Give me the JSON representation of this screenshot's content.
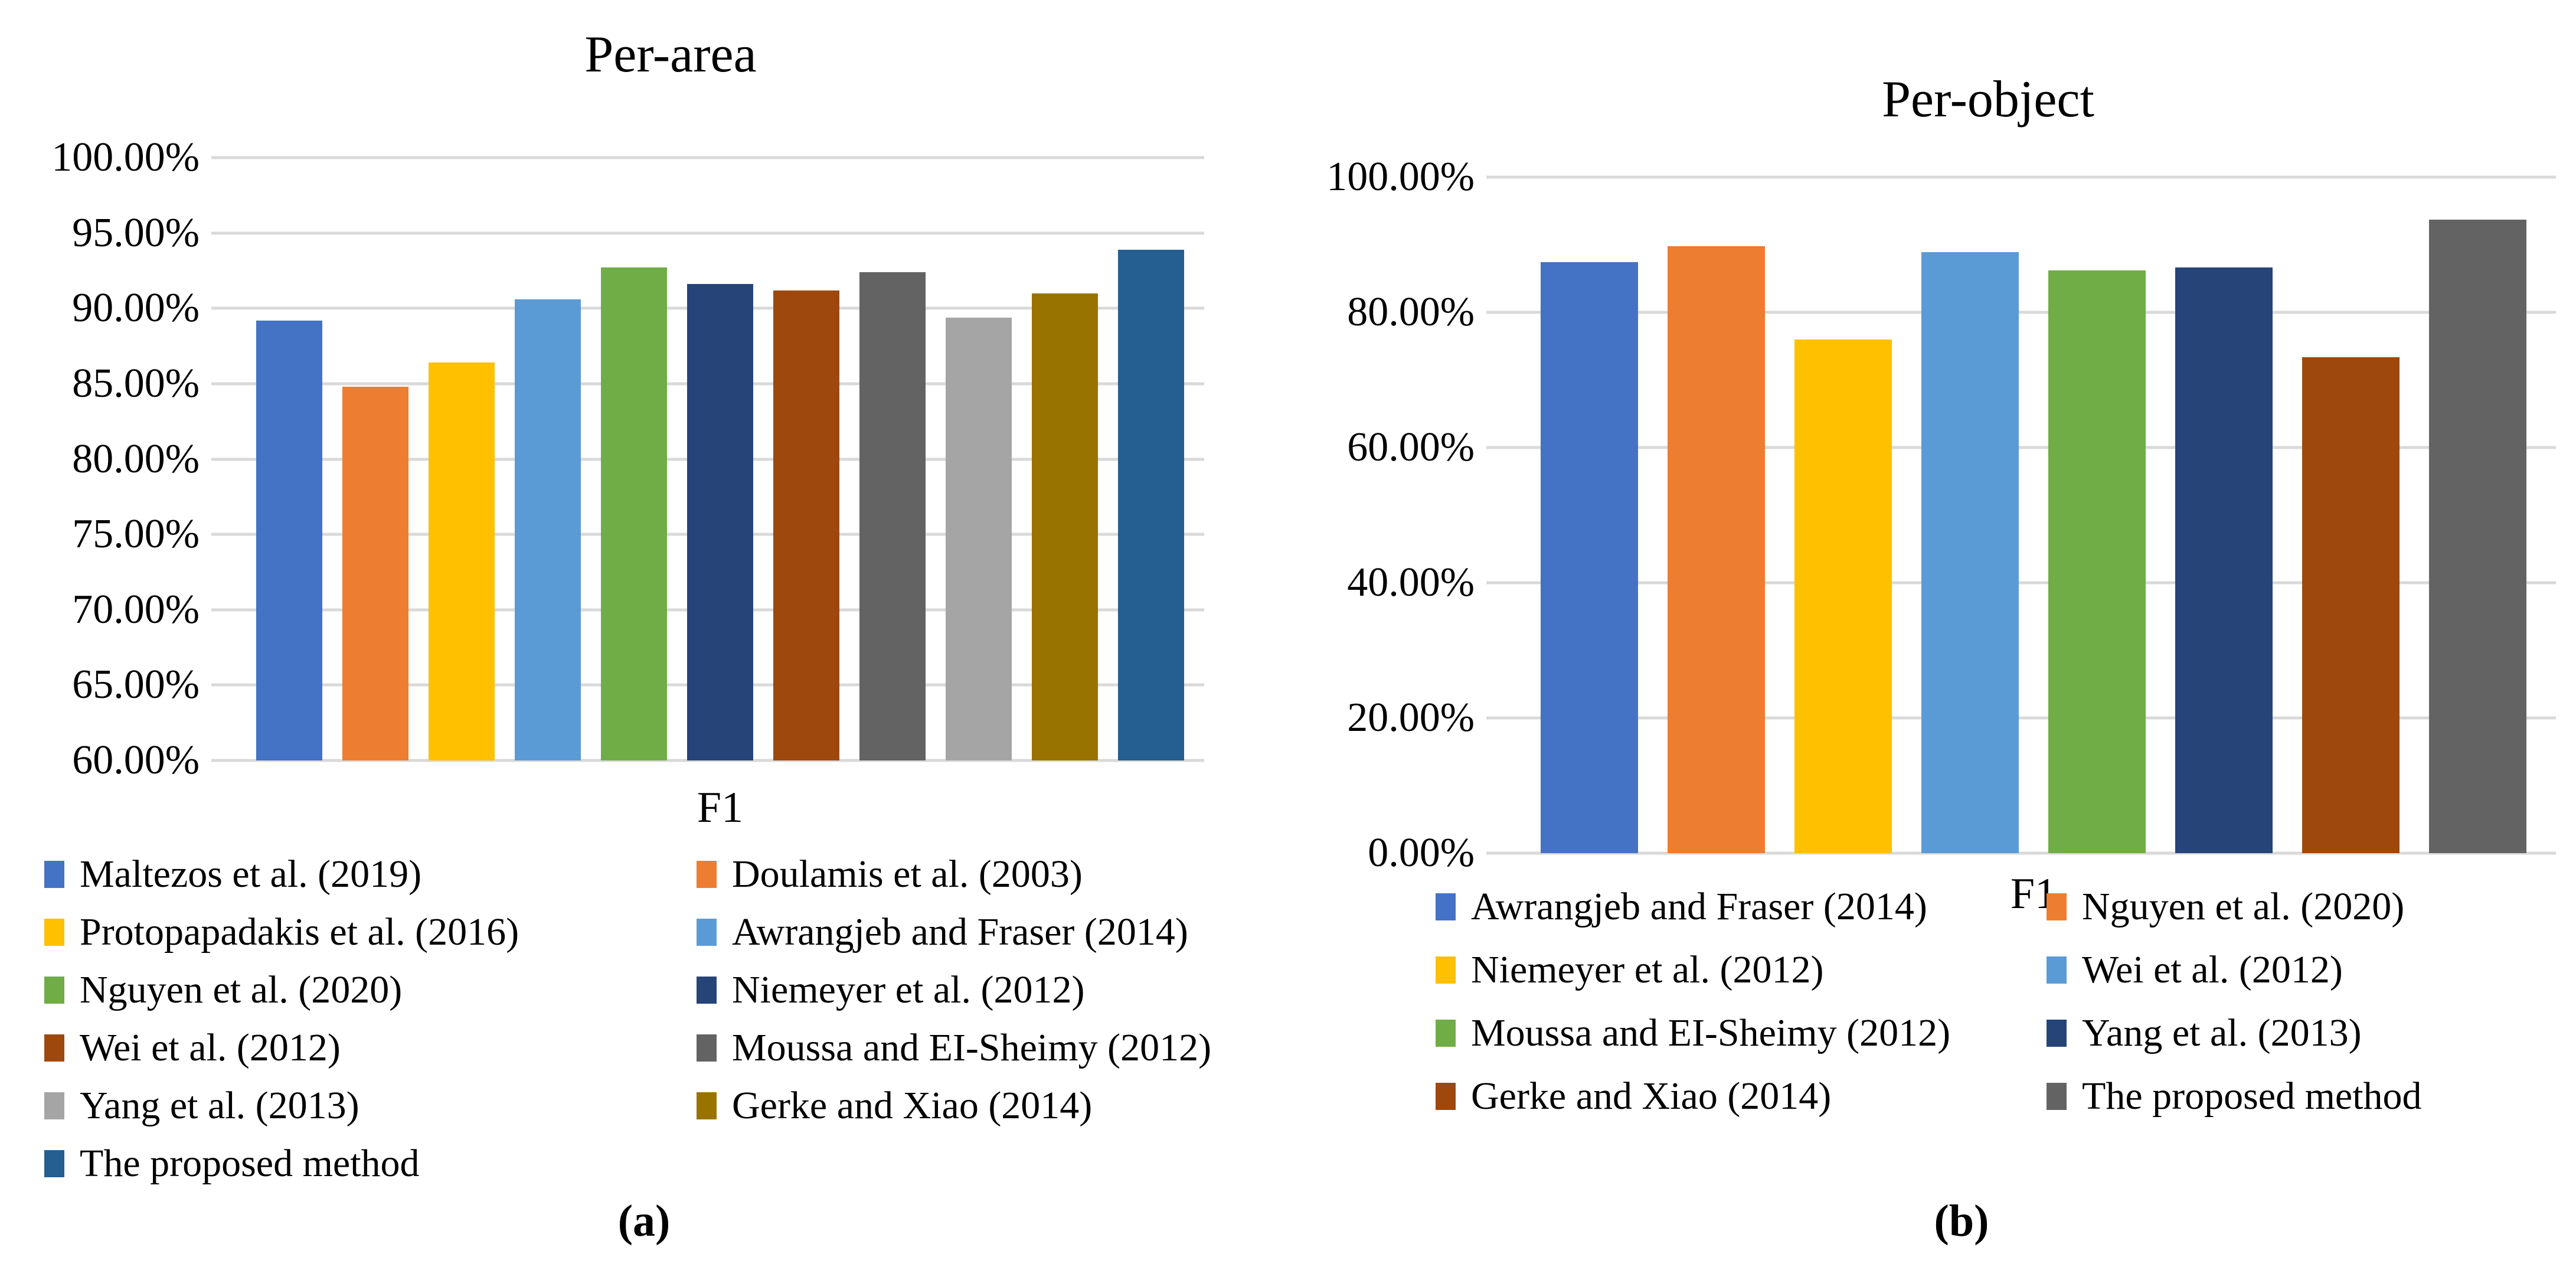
{
  "figure": {
    "panels": [
      {
        "caption": "(a)"
      },
      {
        "caption": "(b)"
      }
    ]
  },
  "chart_data": [
    {
      "type": "bar",
      "title": "Per-area",
      "xlabel": "F1",
      "categories": [
        "F1"
      ],
      "ylim": [
        60,
        100
      ],
      "grid": true,
      "legend_position": "bottom",
      "legend_columns": 2,
      "yticks": [
        {
          "value": 100,
          "label": "100.00%"
        },
        {
          "value": 95,
          "label": "95.00%"
        },
        {
          "value": 90,
          "label": "90.00%"
        },
        {
          "value": 85,
          "label": "85.00%"
        },
        {
          "value": 80,
          "label": "80.00%"
        },
        {
          "value": 75,
          "label": "75.00%"
        },
        {
          "value": 70,
          "label": "70.00%"
        },
        {
          "value": 65,
          "label": "65.00%"
        },
        {
          "value": 60,
          "label": "60.00%"
        }
      ],
      "series": [
        {
          "name": "Maltezos et al. (2019)",
          "value": 89.2,
          "color": "#4472C4"
        },
        {
          "name": "Doulamis et al. (2003)",
          "value": 84.8,
          "color": "#ED7D31"
        },
        {
          "name": "Protopapadakis et al. (2016)",
          "value": 86.4,
          "color": "#FFC000"
        },
        {
          "name": "Awrangjeb and Fraser (2014)",
          "value": 90.6,
          "color": "#5B9BD5"
        },
        {
          "name": "Nguyen et al. (2020)",
          "value": 92.7,
          "color": "#70AD47"
        },
        {
          "name": "Niemeyer et al. (2012)",
          "value": 91.6,
          "color": "#264478"
        },
        {
          "name": "Wei et al. (2012)",
          "value": 91.2,
          "color": "#9E480E"
        },
        {
          "name": "Moussa and EI-Sheimy (2012)",
          "value": 92.4,
          "color": "#636363"
        },
        {
          "name": "Yang et al. (2013)",
          "value": 89.4,
          "color": "#A5A5A5"
        },
        {
          "name": "Gerke and Xiao (2014)",
          "value": 91.0,
          "color": "#997300"
        },
        {
          "name": "The proposed method",
          "value": 93.9,
          "color": "#255E91"
        }
      ]
    },
    {
      "type": "bar",
      "title": "Per-object",
      "xlabel": "F1",
      "categories": [
        "F1"
      ],
      "ylim": [
        0,
        100
      ],
      "grid": true,
      "legend_position": "bottom",
      "legend_columns": 2,
      "yticks": [
        {
          "value": 100,
          "label": "100.00%"
        },
        {
          "value": 80,
          "label": "80.00%"
        },
        {
          "value": 60,
          "label": "60.00%"
        },
        {
          "value": 40,
          "label": "40.00%"
        },
        {
          "value": 20,
          "label": "20.00%"
        },
        {
          "value": 0,
          "label": "0.00%"
        }
      ],
      "series": [
        {
          "name": "Awrangjeb and Fraser (2014)",
          "value": 87.4,
          "color": "#4472C4"
        },
        {
          "name": "Nguyen et al. (2020)",
          "value": 89.8,
          "color": "#ED7D31"
        },
        {
          "name": "Niemeyer et al. (2012)",
          "value": 76.0,
          "color": "#FFC000"
        },
        {
          "name": "Wei et al. (2012)",
          "value": 88.9,
          "color": "#5B9BD5"
        },
        {
          "name": "Moussa and EI-Sheimy (2012)",
          "value": 86.2,
          "color": "#70AD47"
        },
        {
          "name": "Yang et al. (2013)",
          "value": 86.6,
          "color": "#264478"
        },
        {
          "name": "Gerke and Xiao (2014)",
          "value": 73.4,
          "color": "#9E480E"
        },
        {
          "name": "The proposed method",
          "value": 93.7,
          "color": "#636363"
        }
      ]
    }
  ]
}
